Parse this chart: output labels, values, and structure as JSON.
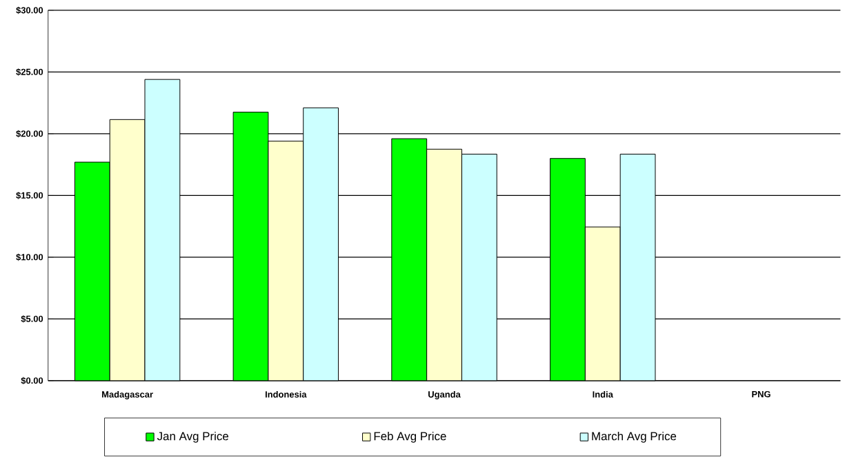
{
  "chart_data": {
    "type": "bar",
    "categories": [
      "Madagascar",
      "Indonesia",
      "Uganda",
      "India",
      "PNG"
    ],
    "series": [
      {
        "name": "Jan Avg Price",
        "color": "#00ff00",
        "values": [
          17.7,
          21.75,
          19.6,
          18.0,
          null
        ]
      },
      {
        "name": "Feb Avg Price",
        "color": "#ffffcc",
        "values": [
          21.15,
          19.4,
          18.75,
          12.45,
          null
        ]
      },
      {
        "name": "March Avg Price",
        "color": "#ccffff",
        "values": [
          24.4,
          22.1,
          18.35,
          18.35,
          null
        ]
      }
    ],
    "ylim": [
      0,
      30
    ],
    "yticks": [
      {
        "value": 0,
        "label": "$0.00"
      },
      {
        "value": 5,
        "label": "$5.00"
      },
      {
        "value": 10,
        "label": "$10.00"
      },
      {
        "value": 15,
        "label": "$15.00"
      },
      {
        "value": 20,
        "label": "$20.00"
      },
      {
        "value": 25,
        "label": "$25.00"
      },
      {
        "value": 30,
        "label": "$30.00"
      }
    ],
    "grid": "y",
    "legend": "bottom"
  }
}
